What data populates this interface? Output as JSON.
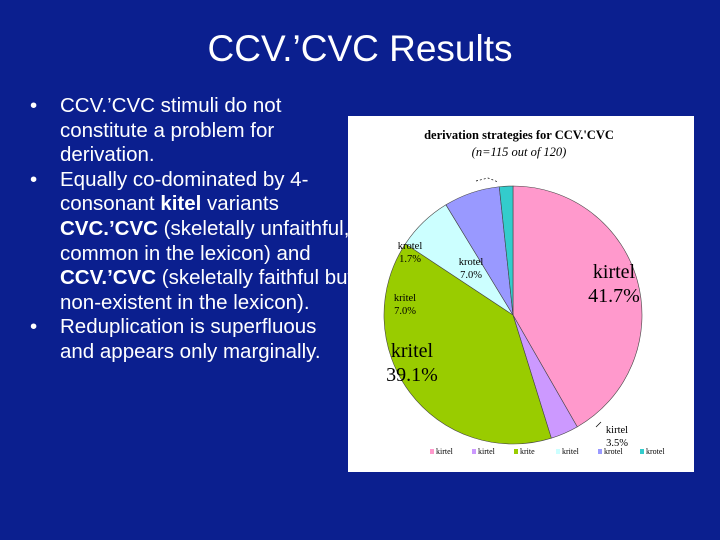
{
  "slide": {
    "title": "CCV.’CVC Results",
    "bullets": [
      [
        "CCV.’CVC stimuli do not constitute a problem for derivation."
      ],
      [
        "Equally co-dominated by 4-consonant ",
        {
          "b": "kitel"
        },
        " variants ",
        {
          "b": "CVC.’CVC"
        },
        " (skeletally unfaithful, common in the lexicon) and ",
        {
          "b": "CCV.’CVC"
        },
        " (skeletally faithful but non-existent in the lexicon)."
      ],
      [
        "Reduplication is superfluous and appears only marginally."
      ]
    ]
  },
  "chart_data": {
    "type": "pie",
    "title": "derivation strategies for CCV.'CVC",
    "subtitle": "(n=115 out of 120)",
    "slices": [
      {
        "label": "kirtel",
        "value": 41.7,
        "display": "41.7%",
        "color": "#ff99cc"
      },
      {
        "label": "kirtel",
        "value": 3.5,
        "display": "3.5%",
        "color": "#cc99ff"
      },
      {
        "label": "kritel",
        "value": 39.1,
        "display": "39.1%",
        "color": "#99cc00"
      },
      {
        "label": "kritel",
        "value": 7.0,
        "display": "7.0%",
        "color": "#ccffff"
      },
      {
        "label": "krotel",
        "value": 7.0,
        "display": "7.0%",
        "color": "#9999ff"
      },
      {
        "label": "krotel",
        "value": 1.7,
        "display": "1.7%",
        "color": "#33cccc"
      }
    ],
    "legend": [
      "kirtel",
      "kirtel",
      "krite",
      "kritel",
      "krotel",
      "krotel"
    ],
    "legend_placement": "bottom"
  }
}
